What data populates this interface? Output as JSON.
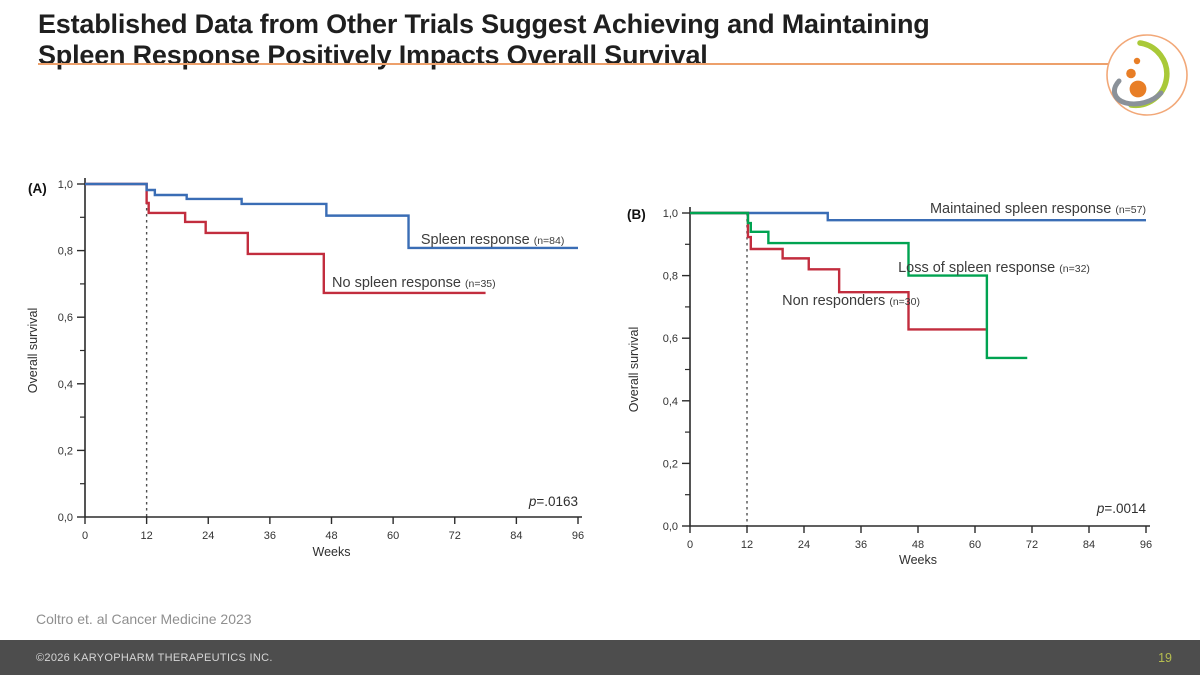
{
  "slide": {
    "title_lines": [
      "Established Data from Other Trials Suggest Achieving and Maintaining",
      "Spleen Response Positively Impacts Overall Survival"
    ],
    "citation": "Coltro et. al Cancer Medicine 2023",
    "footer_text": "©2026 KARYOPHARM THERAPEUTICS INC.",
    "page_number": "19",
    "colors": {
      "accent_line": "#EDA06B",
      "title_text": "#1F1F1F",
      "citation_text": "#8F8F8F",
      "footer_bg": "#4D4D4D",
      "footer_text": "#D6D6D6",
      "page_number": "#B5BD4F"
    },
    "logo": {
      "ring": "#F2A878",
      "swoosh_green": "#A9C938",
      "swoosh_gray": "#8A9199",
      "dots_orange": "#E87E26"
    }
  },
  "chart_data": [
    {
      "type": "line",
      "subtype": "kaplan-meier-step",
      "panel_label": "(A)",
      "xlabel": "Weeks",
      "ylabel": "Overall survival",
      "xlim": [
        0,
        96
      ],
      "ylim": [
        0.0,
        1.0
      ],
      "xticks": [
        0,
        12,
        24,
        36,
        48,
        60,
        72,
        84,
        96
      ],
      "yticks_major": [
        {
          "value": 1.0,
          "label": "1,0"
        },
        {
          "value": 0.8,
          "label": "0,8"
        },
        {
          "value": 0.6,
          "label": "0,6"
        },
        {
          "value": 0.4,
          "label": "0,4"
        },
        {
          "value": 0.2,
          "label": "0,2"
        },
        {
          "value": 0.0,
          "label": "0,0"
        }
      ],
      "yticks_minor": [
        0.9,
        0.7,
        0.5,
        0.3,
        0.1
      ],
      "dashed_vline_x": 12,
      "p_value_label": "p=.0163",
      "grid": false,
      "series": [
        {
          "name": "No spleen response",
          "n_label": "(n=35)",
          "color": "#C22D3E",
          "steps": [
            [
              0,
              1.0
            ],
            [
              12,
              0.943
            ],
            [
              12.4,
              0.913
            ],
            [
              19.5,
              0.886
            ],
            [
              23.5,
              0.853
            ],
            [
              31.7,
              0.79
            ],
            [
              46.5,
              0.673
            ],
            [
              78,
              0.673
            ]
          ],
          "label_pos": [
            48.1,
            0.69
          ],
          "label_anchor": "start"
        },
        {
          "name": "Spleen response",
          "n_label": "(n=84)",
          "color": "#3A6DB5",
          "steps": [
            [
              0,
              1.0
            ],
            [
              12,
              0.982
            ],
            [
              13.6,
              0.967
            ],
            [
              19.8,
              0.955
            ],
            [
              30.5,
              0.94
            ],
            [
              47,
              0.905
            ],
            [
              63,
              0.808
            ],
            [
              96,
              0.808
            ]
          ],
          "label_pos": [
            65.4,
            0.82
          ],
          "label_anchor": "start"
        }
      ]
    },
    {
      "type": "line",
      "subtype": "kaplan-meier-step",
      "panel_label": "(B)",
      "xlabel": "Weeks",
      "ylabel": "Overall survival",
      "xlim": [
        0,
        96
      ],
      "ylim": [
        0.0,
        1.0
      ],
      "xticks": [
        0,
        12,
        24,
        36,
        48,
        60,
        72,
        84,
        96
      ],
      "yticks_major": [
        {
          "value": 1.0,
          "label": "1,0"
        },
        {
          "value": 0.8,
          "label": "0,8"
        },
        {
          "value": 0.6,
          "label": "0,6"
        },
        {
          "value": 0.4,
          "label": "0,4"
        },
        {
          "value": 0.2,
          "label": "0,2"
        },
        {
          "value": 0.0,
          "label": "0,0"
        }
      ],
      "yticks_minor": [
        0.9,
        0.7,
        0.5,
        0.3,
        0.1
      ],
      "dashed_vline_x": 12,
      "p_value_label": "p=.0014",
      "grid": false,
      "series": [
        {
          "name": "Maintained spleen response",
          "n_label": "(n=57)",
          "color": "#3A6DB5",
          "steps": [
            [
              0,
              1.0
            ],
            [
              29,
              0.977
            ],
            [
              96,
              0.977
            ]
          ],
          "label_pos": [
            96,
            1.0
          ],
          "label_anchor": "end"
        },
        {
          "name": "Non responders",
          "n_label": "(n=30)",
          "color": "#C22D3E",
          "steps": [
            [
              0,
              1.0
            ],
            [
              12.2,
              0.923
            ],
            [
              12.8,
              0.885
            ],
            [
              19.5,
              0.855
            ],
            [
              25,
              0.82
            ],
            [
              31.4,
              0.747
            ],
            [
              46,
              0.628
            ],
            [
              62.3,
              0.628
            ]
          ],
          "label_pos": [
            19.4,
            0.706
          ],
          "label_anchor": "start"
        },
        {
          "name": "Loss of spleen response",
          "n_label": "(n=32)",
          "color": "#00A351",
          "steps": [
            [
              0,
              1.0
            ],
            [
              12.2,
              0.968
            ],
            [
              12.8,
              0.94
            ],
            [
              16.5,
              0.904
            ],
            [
              46,
              0.8
            ],
            [
              62.5,
              0.537
            ],
            [
              71,
              0.537
            ]
          ],
          "label_pos": [
            84.2,
            0.812
          ],
          "label_anchor": "end"
        }
      ]
    }
  ]
}
